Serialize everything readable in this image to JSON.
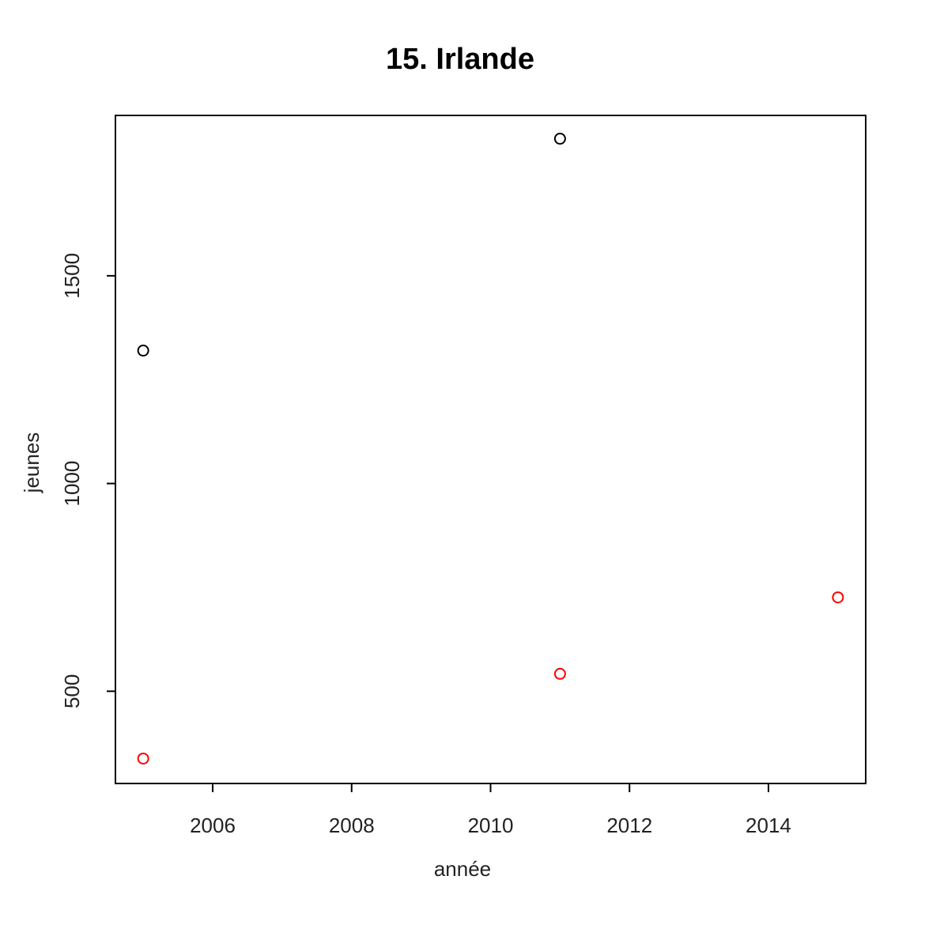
{
  "chart_data": {
    "type": "scatter",
    "title": "15. Irlande",
    "x_label": "année",
    "y_label": "jeunes",
    "series": [
      {
        "color": "#000000",
        "x": [
          2005,
          2011
        ],
        "values": [
          1320,
          1830
        ]
      },
      {
        "color": "#ff0000",
        "x": [
          2005,
          2011,
          2015
        ],
        "values": [
          338,
          542,
          726
        ]
      }
    ],
    "xlim": [
      2004.6,
      2015.4
    ],
    "xticks": [
      2006,
      2008,
      2010,
      2012,
      2014
    ],
    "ylim": [
      278,
      1886
    ],
    "yticks": [
      500,
      1000,
      1500
    ],
    "grid": false
  }
}
